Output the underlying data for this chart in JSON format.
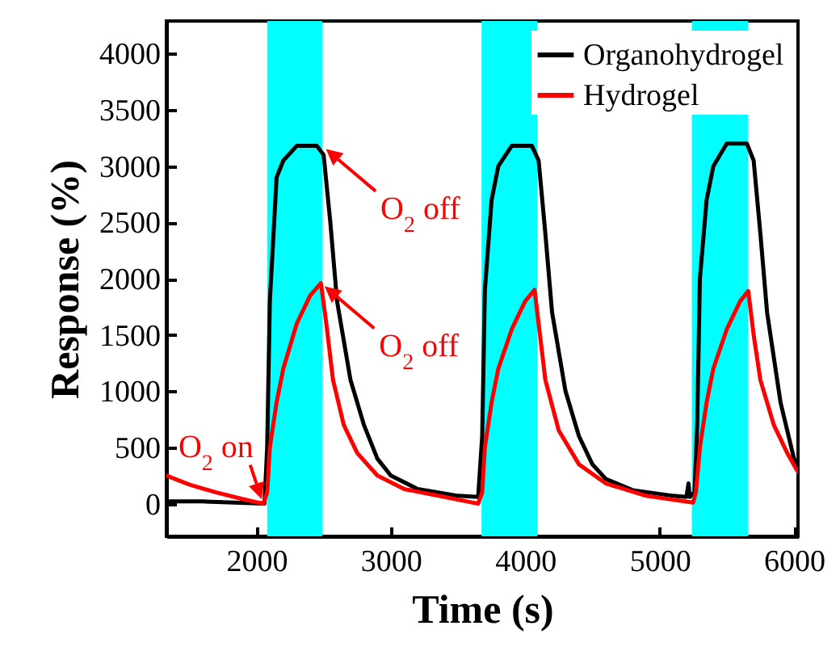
{
  "chart_data": {
    "type": "line",
    "xlabel": "Time (s)",
    "ylabel": "Response (%)",
    "xlim": [
      1330,
      6030
    ],
    "xticks": [
      2000,
      3000,
      4000,
      5000,
      6000
    ],
    "ylim": [
      -290,
      4290
    ],
    "yticks": [
      0,
      500,
      1000,
      1500,
      2000,
      2500,
      3000,
      3500,
      4000
    ],
    "legend": "top right",
    "grid": false,
    "marker": "none",
    "line_style": "solid",
    "series": [
      {
        "name": "Organohydrogel",
        "color": "#000000",
        "x": [
          1330,
          1600,
          2060,
          2080,
          2100,
          2150,
          2200,
          2300,
          2450,
          2500,
          2550,
          2600,
          2700,
          2800,
          2900,
          3000,
          3200,
          3500,
          3650,
          3680,
          3700,
          3750,
          3800,
          3900,
          4050,
          4100,
          4150,
          4200,
          4300,
          4400,
          4500,
          4600,
          4800,
          5100,
          5200,
          5215,
          5225,
          5260,
          5280,
          5300,
          5350,
          5400,
          5500,
          5650,
          5700,
          5750,
          5800,
          5900,
          6000,
          6030
        ],
        "values": [
          20,
          20,
          0,
          500,
          1800,
          2900,
          3050,
          3180,
          3180,
          3100,
          2500,
          1800,
          1100,
          700,
          400,
          250,
          130,
          70,
          60,
          600,
          1900,
          2700,
          3000,
          3180,
          3180,
          3050,
          2400,
          1700,
          1000,
          600,
          350,
          220,
          120,
          70,
          60,
          180,
          60,
          100,
          700,
          2000,
          2700,
          3000,
          3200,
          3200,
          3050,
          2400,
          1700,
          900,
          400,
          330
        ]
      },
      {
        "name": "Hydrogel",
        "color": "#ff0000",
        "x": [
          1330,
          1500,
          1700,
          1900,
          2050,
          2080,
          2100,
          2150,
          2200,
          2300,
          2400,
          2480,
          2520,
          2570,
          2650,
          2750,
          2900,
          3100,
          3400,
          3650,
          3680,
          3700,
          3750,
          3800,
          3900,
          4000,
          4070,
          4110,
          4150,
          4250,
          4400,
          4600,
          4900,
          5250,
          5270,
          5300,
          5350,
          5400,
          5500,
          5600,
          5660,
          5700,
          5750,
          5850,
          5950,
          6030
        ],
        "values": [
          250,
          170,
          100,
          40,
          0,
          100,
          500,
          900,
          1200,
          1600,
          1850,
          1960,
          1600,
          1100,
          700,
          450,
          250,
          130,
          60,
          0,
          100,
          500,
          900,
          1200,
          1550,
          1800,
          1900,
          1500,
          1100,
          650,
          350,
          180,
          70,
          10,
          100,
          500,
          900,
          1200,
          1550,
          1800,
          1890,
          1500,
          1100,
          700,
          450,
          280
        ]
      }
    ],
    "bands": [
      {
        "axis": "x",
        "from": 2080,
        "to": 2490,
        "color": "#00ffff"
      },
      {
        "axis": "x",
        "from": 3675,
        "to": 4090,
        "color": "#00ffff"
      },
      {
        "axis": "x",
        "from": 5240,
        "to": 5660,
        "color": "#00ffff"
      }
    ],
    "annotations": [
      {
        "text": "O$_{2}$ off",
        "x": 2490,
        "y": 3180
      },
      {
        "text": "O$_{2}$ off",
        "x": 2480,
        "y": 1960
      },
      {
        "text": "O$_{2}$ on",
        "x": 2050,
        "y": 0
      }
    ]
  }
}
